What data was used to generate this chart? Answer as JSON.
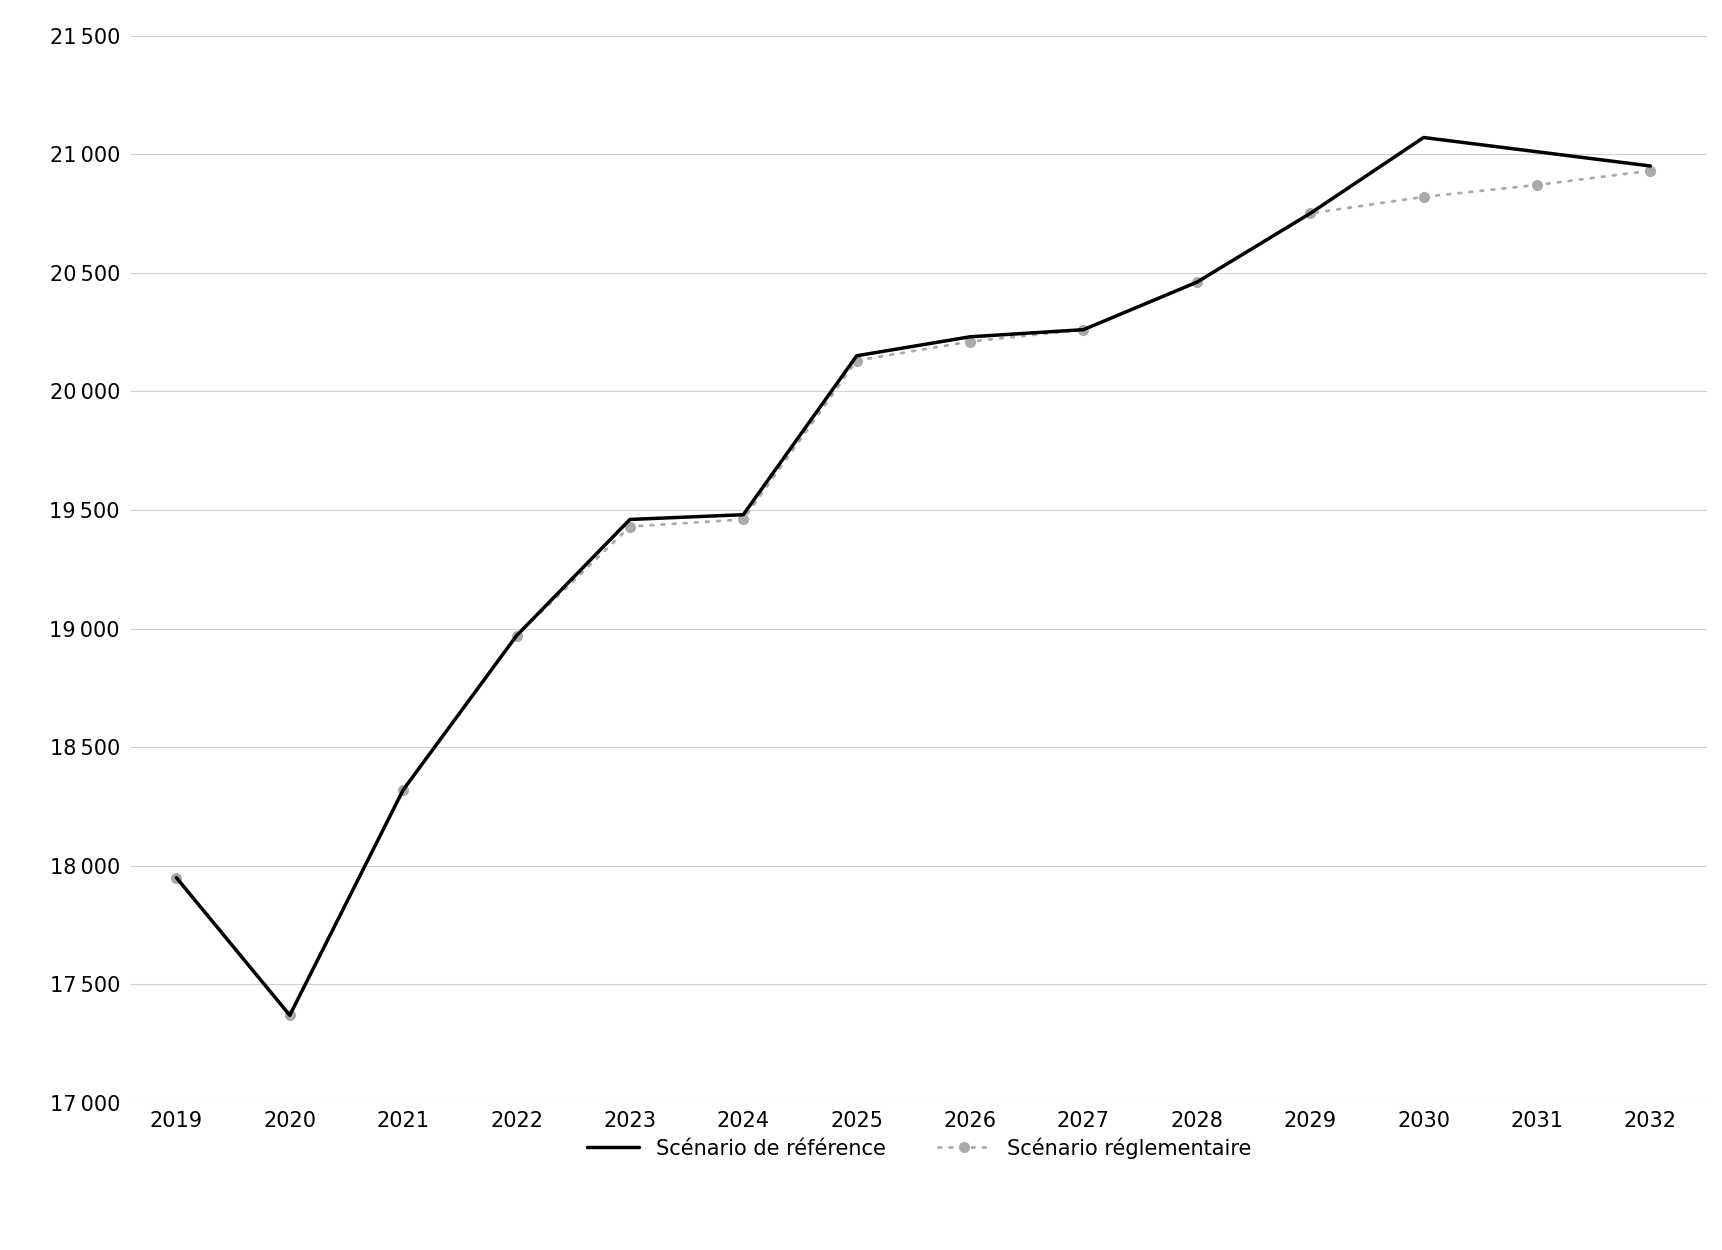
{
  "years": [
    2019,
    2020,
    2021,
    2022,
    2023,
    2024,
    2025,
    2026,
    2027,
    2028,
    2029,
    2030,
    2031,
    2032
  ],
  "reference": [
    17950,
    17370,
    18320,
    18970,
    19460,
    19480,
    20150,
    20230,
    20260,
    20460,
    20750,
    21070,
    21010,
    20950
  ],
  "reglementaire": [
    17950,
    17370,
    18320,
    18970,
    19430,
    19460,
    20130,
    20210,
    20260,
    20460,
    20750,
    20820,
    20870,
    20930
  ],
  "reference_label": "Scénario de référence",
  "reglementaire_label": "Scénario réglementaire",
  "ylim": [
    17000,
    21500
  ],
  "yticks": [
    17000,
    17500,
    18000,
    18500,
    19000,
    19500,
    20000,
    20500,
    21000,
    21500
  ],
  "reference_color": "#000000",
  "reglementaire_color": "#aaaaaa",
  "grid_color": "#d0d0d0",
  "background_color": "#ffffff",
  "reference_linewidth": 2.5,
  "reglementaire_linewidth": 2.0,
  "dot_size": 8
}
